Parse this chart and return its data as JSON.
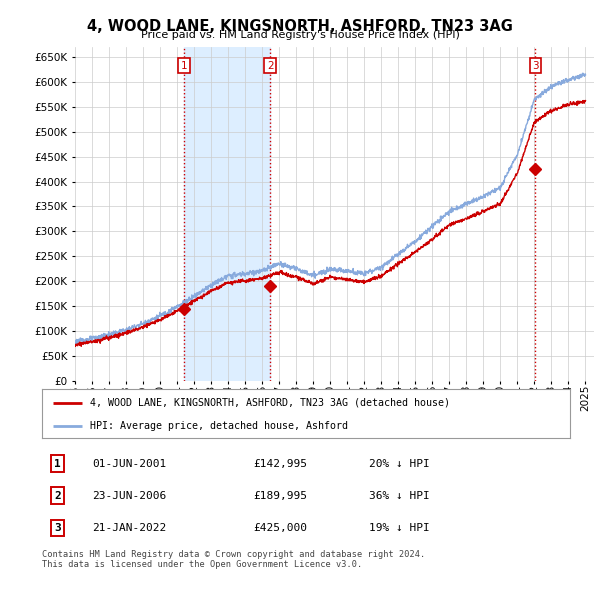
{
  "title": "4, WOOD LANE, KINGSNORTH, ASHFORD, TN23 3AG",
  "subtitle": "Price paid vs. HM Land Registry's House Price Index (HPI)",
  "ylim": [
    0,
    670000
  ],
  "yticks": [
    0,
    50000,
    100000,
    150000,
    200000,
    250000,
    300000,
    350000,
    400000,
    450000,
    500000,
    550000,
    600000,
    650000
  ],
  "xlim_start": 1995.0,
  "xlim_end": 2025.5,
  "sale_points": [
    {
      "date_num": 2001.42,
      "price": 142995,
      "label": "1"
    },
    {
      "date_num": 2006.48,
      "price": 189995,
      "label": "2"
    },
    {
      "date_num": 2022.06,
      "price": 425000,
      "label": "3"
    }
  ],
  "vline_color": "#cc0000",
  "sale_marker_color": "#cc0000",
  "hpi_line_color": "#88aadd",
  "price_line_color": "#cc0000",
  "shade_color": "#ddeeff",
  "footer_text": "Contains HM Land Registry data © Crown copyright and database right 2024.\nThis data is licensed under the Open Government Licence v3.0.",
  "table_rows": [
    {
      "num": "1",
      "date": "01-JUN-2001",
      "price": "£142,995",
      "change": "20% ↓ HPI"
    },
    {
      "num": "2",
      "date": "23-JUN-2006",
      "price": "£189,995",
      "change": "36% ↓ HPI"
    },
    {
      "num": "3",
      "date": "21-JAN-2022",
      "price": "£425,000",
      "change": "19% ↓ HPI"
    }
  ],
  "background_color": "#ffffff",
  "grid_color": "#cccccc",
  "hpi_anchors_years": [
    1995,
    1996,
    1997,
    1998,
    1999,
    2000,
    2001,
    2002,
    2003,
    2004,
    2005,
    2006,
    2007,
    2008,
    2009,
    2010,
    2011,
    2012,
    2013,
    2014,
    2015,
    2016,
    2017,
    2018,
    2019,
    2020,
    2021,
    2022,
    2023,
    2024,
    2025
  ],
  "hpi_anchors_vals": [
    78000,
    84000,
    92000,
    102000,
    115000,
    130000,
    148000,
    170000,
    192000,
    210000,
    215000,
    220000,
    235000,
    225000,
    210000,
    225000,
    220000,
    215000,
    228000,
    255000,
    280000,
    310000,
    340000,
    355000,
    370000,
    388000,
    455000,
    565000,
    590000,
    605000,
    615000
  ],
  "price_anchors_years": [
    1995,
    1996,
    1997,
    1998,
    1999,
    2000,
    2001,
    2002,
    2003,
    2004,
    2005,
    2006,
    2007,
    2008,
    2009,
    2010,
    2011,
    2012,
    2013,
    2014,
    2015,
    2016,
    2017,
    2018,
    2019,
    2020,
    2021,
    2022,
    2023,
    2024,
    2025
  ],
  "price_anchors_vals": [
    72000,
    78000,
    86000,
    96000,
    108000,
    122000,
    140000,
    160000,
    180000,
    197000,
    200000,
    205000,
    218000,
    208000,
    194000,
    208000,
    203000,
    198000,
    210000,
    235000,
    258000,
    285000,
    312000,
    326000,
    340000,
    356000,
    418000,
    520000,
    542000,
    555000,
    560000
  ]
}
